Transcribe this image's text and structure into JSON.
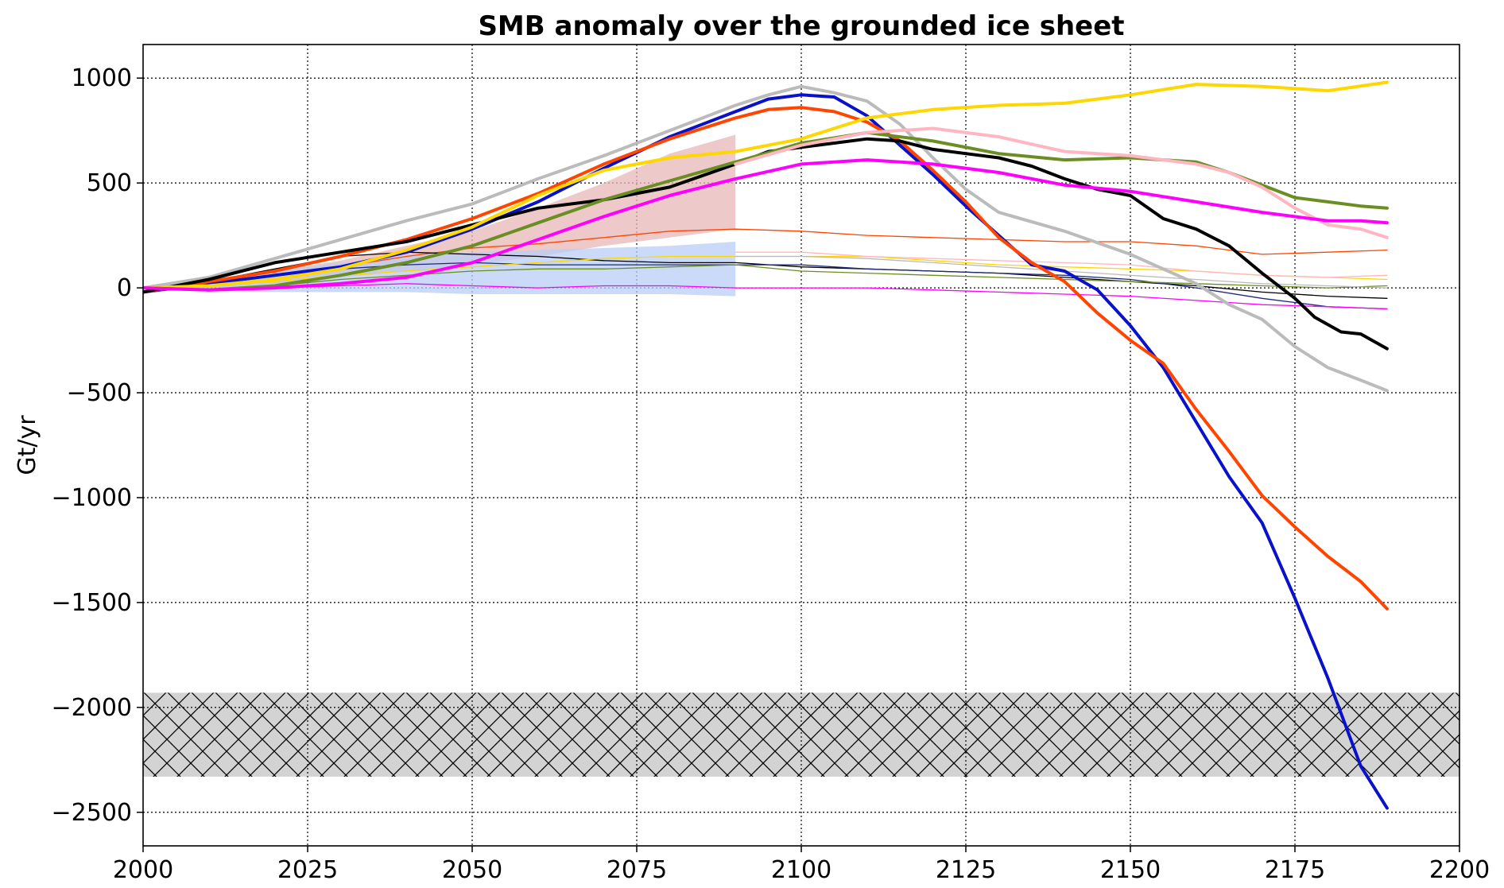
{
  "chart_data": {
    "type": "line",
    "title": "SMB anomaly over the grounded ice sheet",
    "xlabel": "",
    "ylabel": "Gt/yr",
    "xlim": [
      2000,
      2200
    ],
    "ylim": [
      -2660,
      1160
    ],
    "xticks": [
      2000,
      2025,
      2050,
      2075,
      2100,
      2125,
      2150,
      2175,
      2200
    ],
    "yticks": [
      1000,
      500,
      0,
      -500,
      -1000,
      -1500,
      -2000,
      -2500
    ],
    "ytick_labels": [
      "1000",
      "500",
      "0",
      "−500",
      "−1000",
      "−1500",
      "−2000",
      "−2500"
    ],
    "grid": true,
    "legend": "none",
    "hatched_band": {
      "y_range": [
        -2330,
        -1930
      ],
      "color": "#d3d3d3",
      "x_range": [
        2000,
        2200
      ]
    },
    "shaded_ranges": [
      {
        "color": "#e7b7b7",
        "x": [
          2003,
          2010,
          2020,
          2030,
          2040,
          2050,
          2060,
          2070,
          2080,
          2090
        ],
        "upper": [
          10,
          40,
          80,
          130,
          200,
          270,
          380,
          500,
          640,
          730
        ],
        "lower": [
          -10,
          0,
          20,
          50,
          80,
          110,
          150,
          200,
          240,
          280
        ]
      },
      {
        "color": "#b8cef5",
        "x": [
          2003,
          2010,
          2020,
          2030,
          2040,
          2050,
          2060,
          2070,
          2080,
          2090
        ],
        "upper": [
          10,
          40,
          80,
          120,
          150,
          170,
          180,
          190,
          200,
          220
        ],
        "lower": [
          -10,
          -20,
          -20,
          -20,
          -20,
          -30,
          -30,
          -30,
          -30,
          -40
        ]
      }
    ],
    "series": [
      {
        "color": "#bbbbbb",
        "width": 4,
        "x": [
          2000,
          2010,
          2020,
          2030,
          2040,
          2050,
          2060,
          2070,
          2080,
          2090,
          2095,
          2100,
          2105,
          2110,
          2115,
          2120,
          2125,
          2130,
          2140,
          2150,
          2160,
          2165,
          2170,
          2175,
          2180,
          2185,
          2189
        ],
        "y": [
          0,
          50,
          140,
          230,
          320,
          400,
          520,
          630,
          750,
          870,
          920,
          960,
          930,
          890,
          780,
          620,
          470,
          360,
          270,
          160,
          20,
          -80,
          -150,
          -280,
          -380,
          -440,
          -490
        ]
      },
      {
        "color": "#0a12c9",
        "width": 4,
        "x": [
          2000,
          2010,
          2020,
          2030,
          2040,
          2050,
          2060,
          2070,
          2080,
          2090,
          2095,
          2100,
          2105,
          2110,
          2115,
          2120,
          2125,
          2130,
          2135,
          2140,
          2145,
          2150,
          2155,
          2160,
          2165,
          2170,
          2175,
          2180,
          2185,
          2189
        ],
        "y": [
          -20,
          20,
          60,
          100,
          170,
          280,
          410,
          570,
          720,
          840,
          900,
          920,
          910,
          820,
          680,
          540,
          390,
          250,
          110,
          80,
          -10,
          -180,
          -380,
          -640,
          -900,
          -1120,
          -1480,
          -1860,
          -2280,
          -2480
        ]
      },
      {
        "color": "#ff4500",
        "width": 4,
        "x": [
          2000,
          2010,
          2020,
          2030,
          2040,
          2050,
          2060,
          2070,
          2080,
          2090,
          2095,
          2100,
          2105,
          2110,
          2115,
          2120,
          2125,
          2130,
          2135,
          2140,
          2145,
          2150,
          2155,
          2160,
          2165,
          2170,
          2175,
          2180,
          2185,
          2189
        ],
        "y": [
          -20,
          30,
          80,
          150,
          230,
          330,
          450,
          590,
          710,
          810,
          850,
          860,
          840,
          790,
          700,
          560,
          410,
          240,
          120,
          30,
          -120,
          -250,
          -360,
          -580,
          -780,
          -990,
          -1140,
          -1280,
          -1400,
          -1530
        ]
      },
      {
        "color": "#000000",
        "width": 4,
        "x": [
          2000,
          2010,
          2020,
          2030,
          2040,
          2050,
          2060,
          2070,
          2080,
          2090,
          2095,
          2100,
          2105,
          2110,
          2115,
          2120,
          2125,
          2130,
          2135,
          2140,
          2145,
          2150,
          2155,
          2160,
          2165,
          2170,
          2175,
          2178,
          2182,
          2185,
          2189
        ],
        "y": [
          -20,
          40,
          120,
          170,
          220,
          300,
          380,
          420,
          480,
          590,
          650,
          670,
          690,
          710,
          700,
          660,
          640,
          620,
          580,
          520,
          470,
          440,
          330,
          280,
          200,
          70,
          -50,
          -140,
          -210,
          -220,
          -290
        ]
      },
      {
        "color": "#ffd700",
        "width": 4,
        "x": [
          2000,
          2010,
          2020,
          2030,
          2040,
          2050,
          2060,
          2070,
          2080,
          2090,
          2100,
          2110,
          2120,
          2130,
          2140,
          2150,
          2160,
          2170,
          2180,
          2189
        ],
        "y": [
          0,
          10,
          40,
          90,
          180,
          290,
          440,
          560,
          620,
          650,
          710,
          810,
          850,
          870,
          880,
          920,
          970,
          960,
          940,
          980
        ]
      },
      {
        "color": "#6b8e23",
        "width": 4,
        "x": [
          2000,
          2010,
          2020,
          2030,
          2040,
          2050,
          2060,
          2070,
          2080,
          2090,
          2100,
          2110,
          2120,
          2130,
          2140,
          2150,
          2160,
          2165,
          2170,
          2175,
          2180,
          2185,
          2189
        ],
        "y": [
          0,
          -10,
          10,
          60,
          120,
          200,
          310,
          420,
          510,
          600,
          690,
          740,
          700,
          640,
          610,
          620,
          600,
          550,
          490,
          430,
          410,
          390,
          380
        ]
      },
      {
        "color": "#ffb6c1",
        "width": 4,
        "x": [
          2090,
          2100,
          2110,
          2120,
          2130,
          2140,
          2150,
          2160,
          2165,
          2170,
          2175,
          2180,
          2185,
          2189
        ],
        "y": [
          590,
          680,
          740,
          760,
          720,
          650,
          630,
          590,
          550,
          480,
          380,
          300,
          280,
          240
        ]
      },
      {
        "color": "#ff00ff",
        "width": 4,
        "x": [
          2000,
          2010,
          2020,
          2030,
          2040,
          2050,
          2060,
          2070,
          2080,
          2090,
          2100,
          2110,
          2120,
          2130,
          2140,
          2150,
          2160,
          2170,
          2180,
          2185,
          2189
        ],
        "y": [
          0,
          -10,
          0,
          20,
          50,
          120,
          230,
          340,
          440,
          520,
          590,
          610,
          590,
          550,
          490,
          460,
          410,
          360,
          320,
          320,
          310
        ]
      },
      {
        "color": "#ff4500",
        "width": 1.3,
        "x": [
          2003,
          2010,
          2020,
          2030,
          2040,
          2050,
          2060,
          2070,
          2080,
          2090,
          2100,
          2110,
          2120,
          2130,
          2140,
          2150,
          2160,
          2170,
          2180,
          2189
        ],
        "y": [
          0,
          20,
          60,
          100,
          150,
          190,
          210,
          240,
          270,
          280,
          270,
          250,
          240,
          230,
          220,
          220,
          200,
          160,
          170,
          180
        ]
      },
      {
        "color": "#000000",
        "width": 1.3,
        "x": [
          2003,
          2010,
          2020,
          2030,
          2040,
          2050,
          2060,
          2070,
          2080,
          2090,
          2100,
          2110,
          2120,
          2130,
          2140,
          2150,
          2160,
          2170,
          2180,
          2189
        ],
        "y": [
          0,
          30,
          90,
          150,
          170,
          160,
          150,
          130,
          120,
          120,
          100,
          90,
          80,
          70,
          50,
          30,
          10,
          -20,
          -40,
          -50
        ]
      },
      {
        "color": "#1e2a78",
        "width": 1.3,
        "x": [
          2003,
          2010,
          2020,
          2030,
          2040,
          2050,
          2060,
          2070,
          2080,
          2090,
          2100,
          2110,
          2120,
          2130,
          2140,
          2150,
          2160,
          2170,
          2180,
          2189
        ],
        "y": [
          0,
          20,
          60,
          90,
          110,
          120,
          110,
          110,
          110,
          110,
          110,
          90,
          80,
          70,
          60,
          40,
          0,
          -50,
          -90,
          -100
        ]
      },
      {
        "color": "#ffd700",
        "width": 1.3,
        "x": [
          2003,
          2010,
          2020,
          2030,
          2040,
          2050,
          2060,
          2070,
          2080,
          2090,
          2100,
          2110,
          2120,
          2130,
          2140,
          2150,
          2160,
          2170,
          2180,
          2189
        ],
        "y": [
          0,
          10,
          30,
          60,
          80,
          100,
          120,
          140,
          150,
          150,
          150,
          150,
          130,
          110,
          100,
          90,
          80,
          60,
          50,
          40
        ]
      },
      {
        "color": "#6b8e23",
        "width": 1.3,
        "x": [
          2003,
          2010,
          2020,
          2030,
          2040,
          2050,
          2060,
          2070,
          2080,
          2090,
          2100,
          2110,
          2120,
          2130,
          2140,
          2150,
          2160,
          2170,
          2180,
          2189
        ],
        "y": [
          0,
          -10,
          10,
          40,
          60,
          80,
          90,
          90,
          100,
          110,
          80,
          70,
          60,
          50,
          40,
          30,
          20,
          10,
          0,
          10
        ]
      },
      {
        "color": "#ffb6c1",
        "width": 1.3,
        "x": [
          2090,
          2100,
          2110,
          2120,
          2130,
          2140,
          2150,
          2160,
          2170,
          2180,
          2189
        ],
        "y": [
          170,
          170,
          150,
          140,
          130,
          120,
          110,
          80,
          60,
          50,
          60
        ]
      },
      {
        "color": "#ff00ff",
        "width": 1.3,
        "x": [
          2003,
          2010,
          2020,
          2030,
          2040,
          2050,
          2060,
          2070,
          2080,
          2090,
          2100,
          2110,
          2120,
          2130,
          2140,
          2150,
          2160,
          2170,
          2180,
          2189
        ],
        "y": [
          0,
          -10,
          0,
          10,
          20,
          10,
          0,
          10,
          10,
          0,
          0,
          0,
          -10,
          -20,
          -30,
          -40,
          -60,
          -80,
          -90,
          -100
        ]
      },
      {
        "color": "#bbbbbb",
        "width": 1.3,
        "x": [
          2090,
          2100,
          2110,
          2120,
          2130,
          2140,
          2150,
          2160,
          2170,
          2180,
          2189
        ],
        "y": [
          150,
          150,
          140,
          120,
          100,
          80,
          60,
          40,
          20,
          10,
          0
        ]
      }
    ]
  }
}
